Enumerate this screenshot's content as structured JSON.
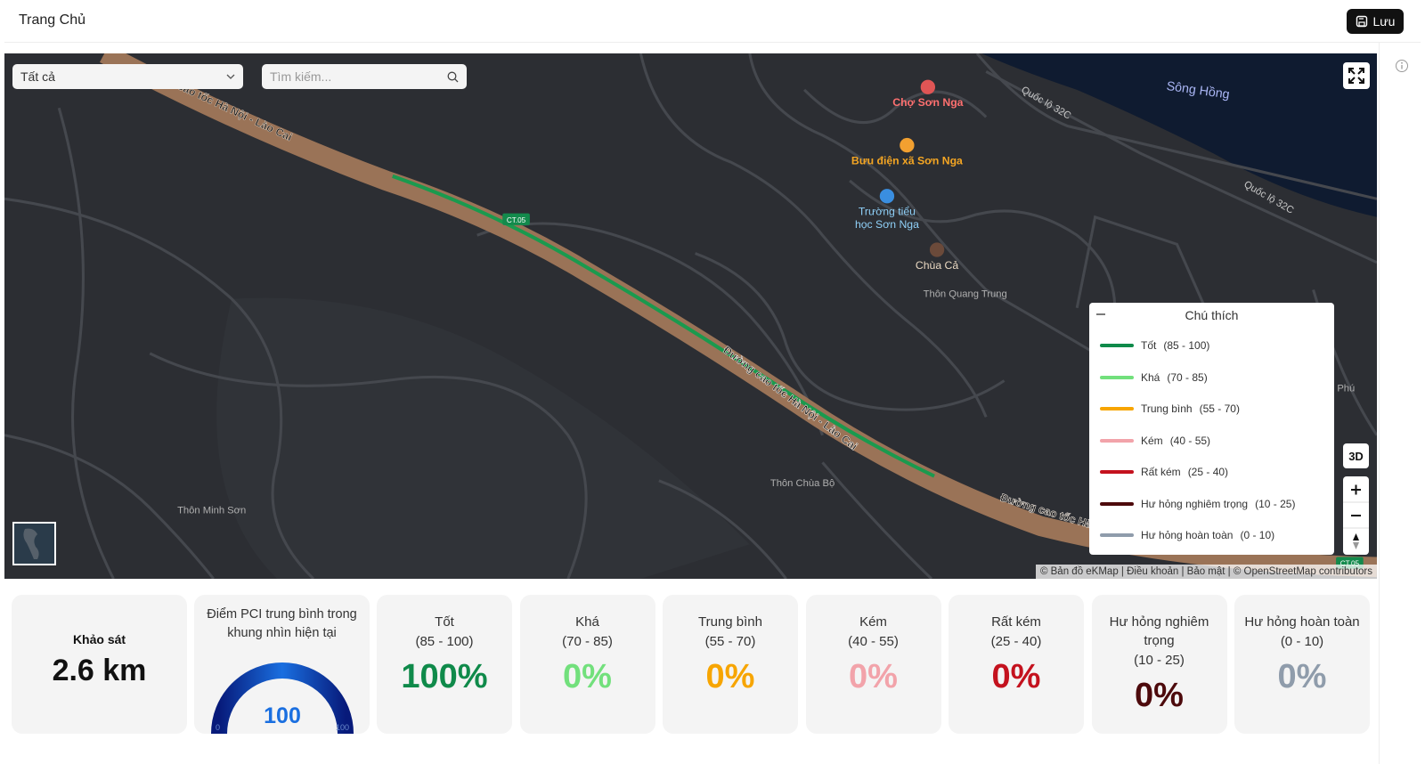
{
  "header": {
    "title": "Trang Chủ",
    "save_button": "Lưu"
  },
  "filters": {
    "select": "Tất cả",
    "search_placeholder": "Tìm kiếm..."
  },
  "map": {
    "highway_name": "Đường cao tốc Hà Nội - Lào Cai",
    "highway_code": "CT.05",
    "national_road": "Quốc lộ 32C",
    "river": "Sông Hồng",
    "places": {
      "market": "Chợ Sơn Nga",
      "post_office": "Bưu điện xã Sơn Nga",
      "school": [
        "Trường tiểu",
        "học Sơn Nga"
      ],
      "pagoda": "Chùa Cả",
      "village_quang_trung": "Thôn Quang Trung",
      "village_chua_bo": "Thôn Chùa Bộ",
      "village_minh_son": "Thôn Minh Sơn",
      "phu": "Phú"
    },
    "button_3d": "3D",
    "attribution": "© Bản đồ eKMap | Điều khoản | Bảo mật | © OpenStreetMap contributors"
  },
  "legend": {
    "title": "Chú thích"
  },
  "conditions": [
    {
      "name": "Tốt",
      "range": "(85 - 100)",
      "color": "#0f8a4a",
      "share": "100%"
    },
    {
      "name": "Khá",
      "range": "(70 - 85)",
      "color": "#72e07c",
      "share": "0%"
    },
    {
      "name": "Trung bình",
      "range": "(55 - 70)",
      "color": "#f7a500",
      "share": "0%"
    },
    {
      "name": "Kém",
      "range": "(40 - 55)",
      "color": "#f2a3aa",
      "share": "0%"
    },
    {
      "name": "Rất kém",
      "range": "(25 - 40)",
      "color": "#c4121e",
      "share": "0%"
    },
    {
      "name": "Hư hỏng nghiêm trọng",
      "range": "(10 - 25)",
      "color": "#4d0a0c",
      "share": "0%"
    },
    {
      "name": "Hư hỏng hoàn toàn",
      "range": "(0 - 10)",
      "color": "#8f9cab",
      "share": "0%"
    }
  ],
  "survey": {
    "label": "Khảo sát",
    "value": "2.6 km"
  },
  "pci": {
    "label": "Điểm PCI trung bình trong khung nhìn hiện tại",
    "value": 100,
    "min": 0,
    "max": 100
  }
}
